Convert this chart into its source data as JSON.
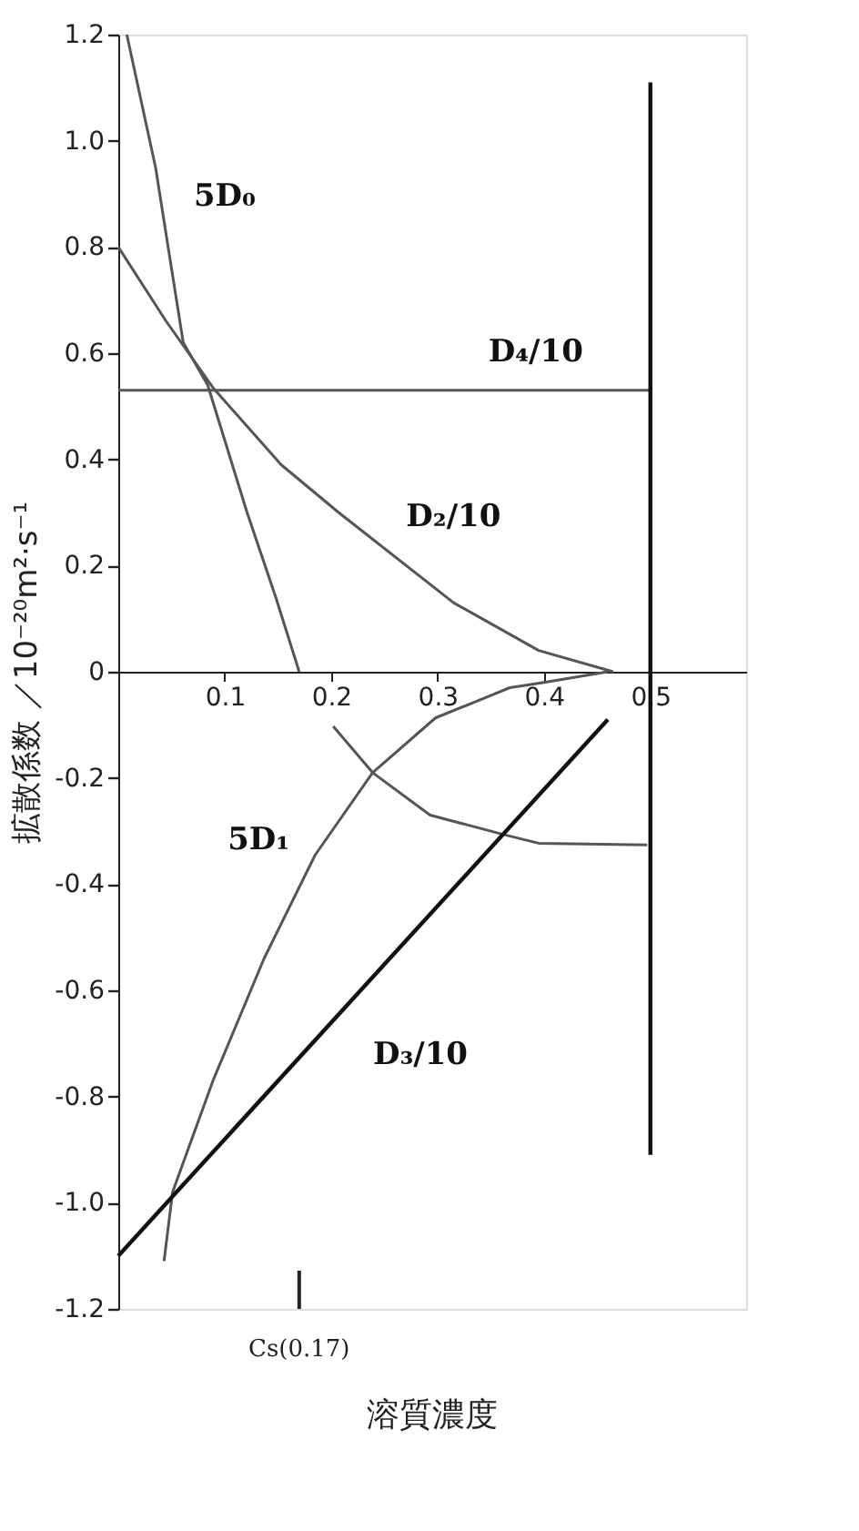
{
  "chart_data": {
    "type": "line",
    "xlabel": "溶質濃度",
    "ylabel": "拡散係数 ／10⁻²⁰m²·s⁻¹",
    "xlim": [
      0,
      0.59
    ],
    "xticks": [
      0.1,
      0.2,
      0.3,
      0.4,
      0.5
    ],
    "ref_lines": [
      {
        "axis": "x",
        "value": 0.17,
        "label": "Cs(0.17)"
      }
    ],
    "ylim": [
      -1.2,
      1.2
    ],
    "yticks": [
      {
        "value": -1.2,
        "label": "-1.2"
      },
      {
        "value": -1.0,
        "label": "-1.0"
      },
      -0.8,
      -0.6,
      -0.4,
      -0.2,
      0,
      0.2,
      0.4,
      0.6,
      0.8,
      {
        "value": 1.0,
        "label": "1.0"
      },
      1.2
    ],
    "marker": "none",
    "line_style": "solid",
    "series": [
      {
        "name": "5D₀",
        "color": "#555555",
        "x": [
          0.008,
          0.035,
          0.061,
          0.084,
          0.121,
          0.148,
          0.17
        ],
        "values": [
          1.2,
          0.95,
          0.62,
          0.54,
          0.3,
          0.14,
          0
        ]
      },
      {
        "name": "D₂/10",
        "color": "#555555",
        "x": [
          0,
          0.045,
          0.089,
          0.153,
          0.207,
          0.315,
          0.395,
          0.465
        ],
        "values": [
          0.8,
          0.66,
          0.535,
          0.39,
          0.3,
          0.13,
          0.04,
          0
        ]
      },
      {
        "name": "D₄/10",
        "color": "#555555",
        "x": [
          0,
          0.5
        ],
        "values": [
          0.53,
          0.53
        ]
      },
      {
        "color": "#111111",
        "x": [
          0.5,
          0.5
        ],
        "values": [
          1.11,
          -0.91
        ]
      },
      {
        "name": "5D₁",
        "color": "#555555",
        "x": [
          0.043,
          0.051,
          0.089,
          0.137,
          0.185,
          0.239,
          0.298,
          0.368,
          0.4,
          0.46
        ],
        "values": [
          -1.11,
          -0.98,
          -0.77,
          -0.54,
          -0.345,
          -0.19,
          -0.087,
          -0.03,
          -0.02,
          0
        ]
      },
      {
        "color": "#555555",
        "x": [
          0.202,
          0.239,
          0.293,
          0.363,
          0.395,
          0.497
        ],
        "values": [
          -0.103,
          -0.19,
          -0.27,
          -0.307,
          -0.323,
          -0.326
        ]
      },
      {
        "name": "D₃/10",
        "color": "#111111",
        "x": [
          0,
          0.46
        ],
        "values": [
          -1.1,
          -0.09
        ]
      }
    ]
  }
}
